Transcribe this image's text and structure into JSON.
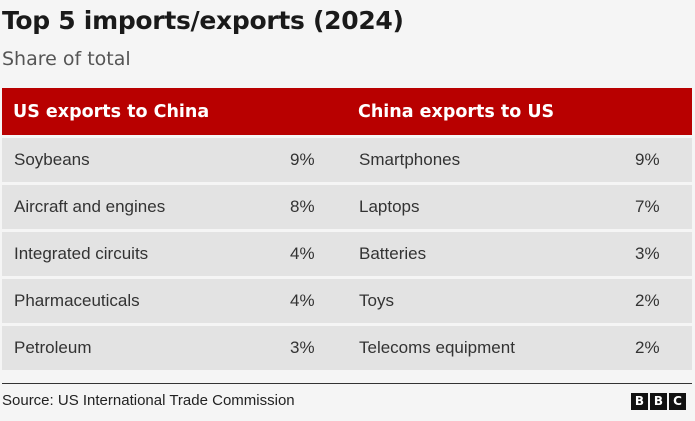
{
  "header": {
    "title": "Top 5 imports/exports (2024)",
    "subtitle": "Share of total"
  },
  "chart_data": {
    "type": "table",
    "columns": [
      "US exports to China",
      "China exports to US"
    ],
    "left": [
      {
        "label": "Soybeans",
        "value": "9%"
      },
      {
        "label": "Aircraft and engines",
        "value": "8%"
      },
      {
        "label": "Integrated circuits",
        "value": "4%"
      },
      {
        "label": "Pharmaceuticals",
        "value": "4%"
      },
      {
        "label": "Petroleum",
        "value": "3%"
      }
    ],
    "right": [
      {
        "label": "Smartphones",
        "value": "9%"
      },
      {
        "label": "Laptops",
        "value": "7%"
      },
      {
        "label": "Batteries",
        "value": "3%"
      },
      {
        "label": "Toys",
        "value": "2%"
      },
      {
        "label": "Telecoms equipment",
        "value": "2%"
      }
    ]
  },
  "footer": {
    "source": "Source: US International Trade Commission",
    "logo_letters": [
      "B",
      "B",
      "C"
    ]
  },
  "colors": {
    "header_bg": "#b80000",
    "row_bg": "#e3e3e3",
    "page_bg": "#f5f5f5"
  }
}
